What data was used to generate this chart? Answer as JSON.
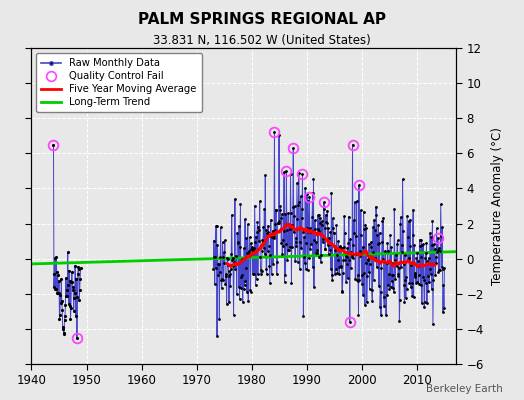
{
  "title": "PALM SPRINGS REGIONAL AP",
  "subtitle": "33.831 N, 116.502 W (United States)",
  "ylabel": "Temperature Anomaly (°C)",
  "credit": "Berkeley Earth",
  "xlim": [
    1940,
    2017
  ],
  "ylim": [
    -6,
    12
  ],
  "yticks": [
    -6,
    -4,
    -2,
    0,
    2,
    4,
    6,
    8,
    10,
    12
  ],
  "xticks": [
    1940,
    1950,
    1960,
    1970,
    1980,
    1990,
    2000,
    2010
  ],
  "bg_color": "#e8e8e8",
  "raw_color": "#4444cc",
  "dot_color": "#000000",
  "qc_color": "#ff44ff",
  "moving_avg_color": "#ff0000",
  "trend_color": "#00cc00",
  "raw_linewidth": 0.7,
  "moving_avg_linewidth": 2.0,
  "trend_linewidth": 2.0,
  "seed": 42
}
